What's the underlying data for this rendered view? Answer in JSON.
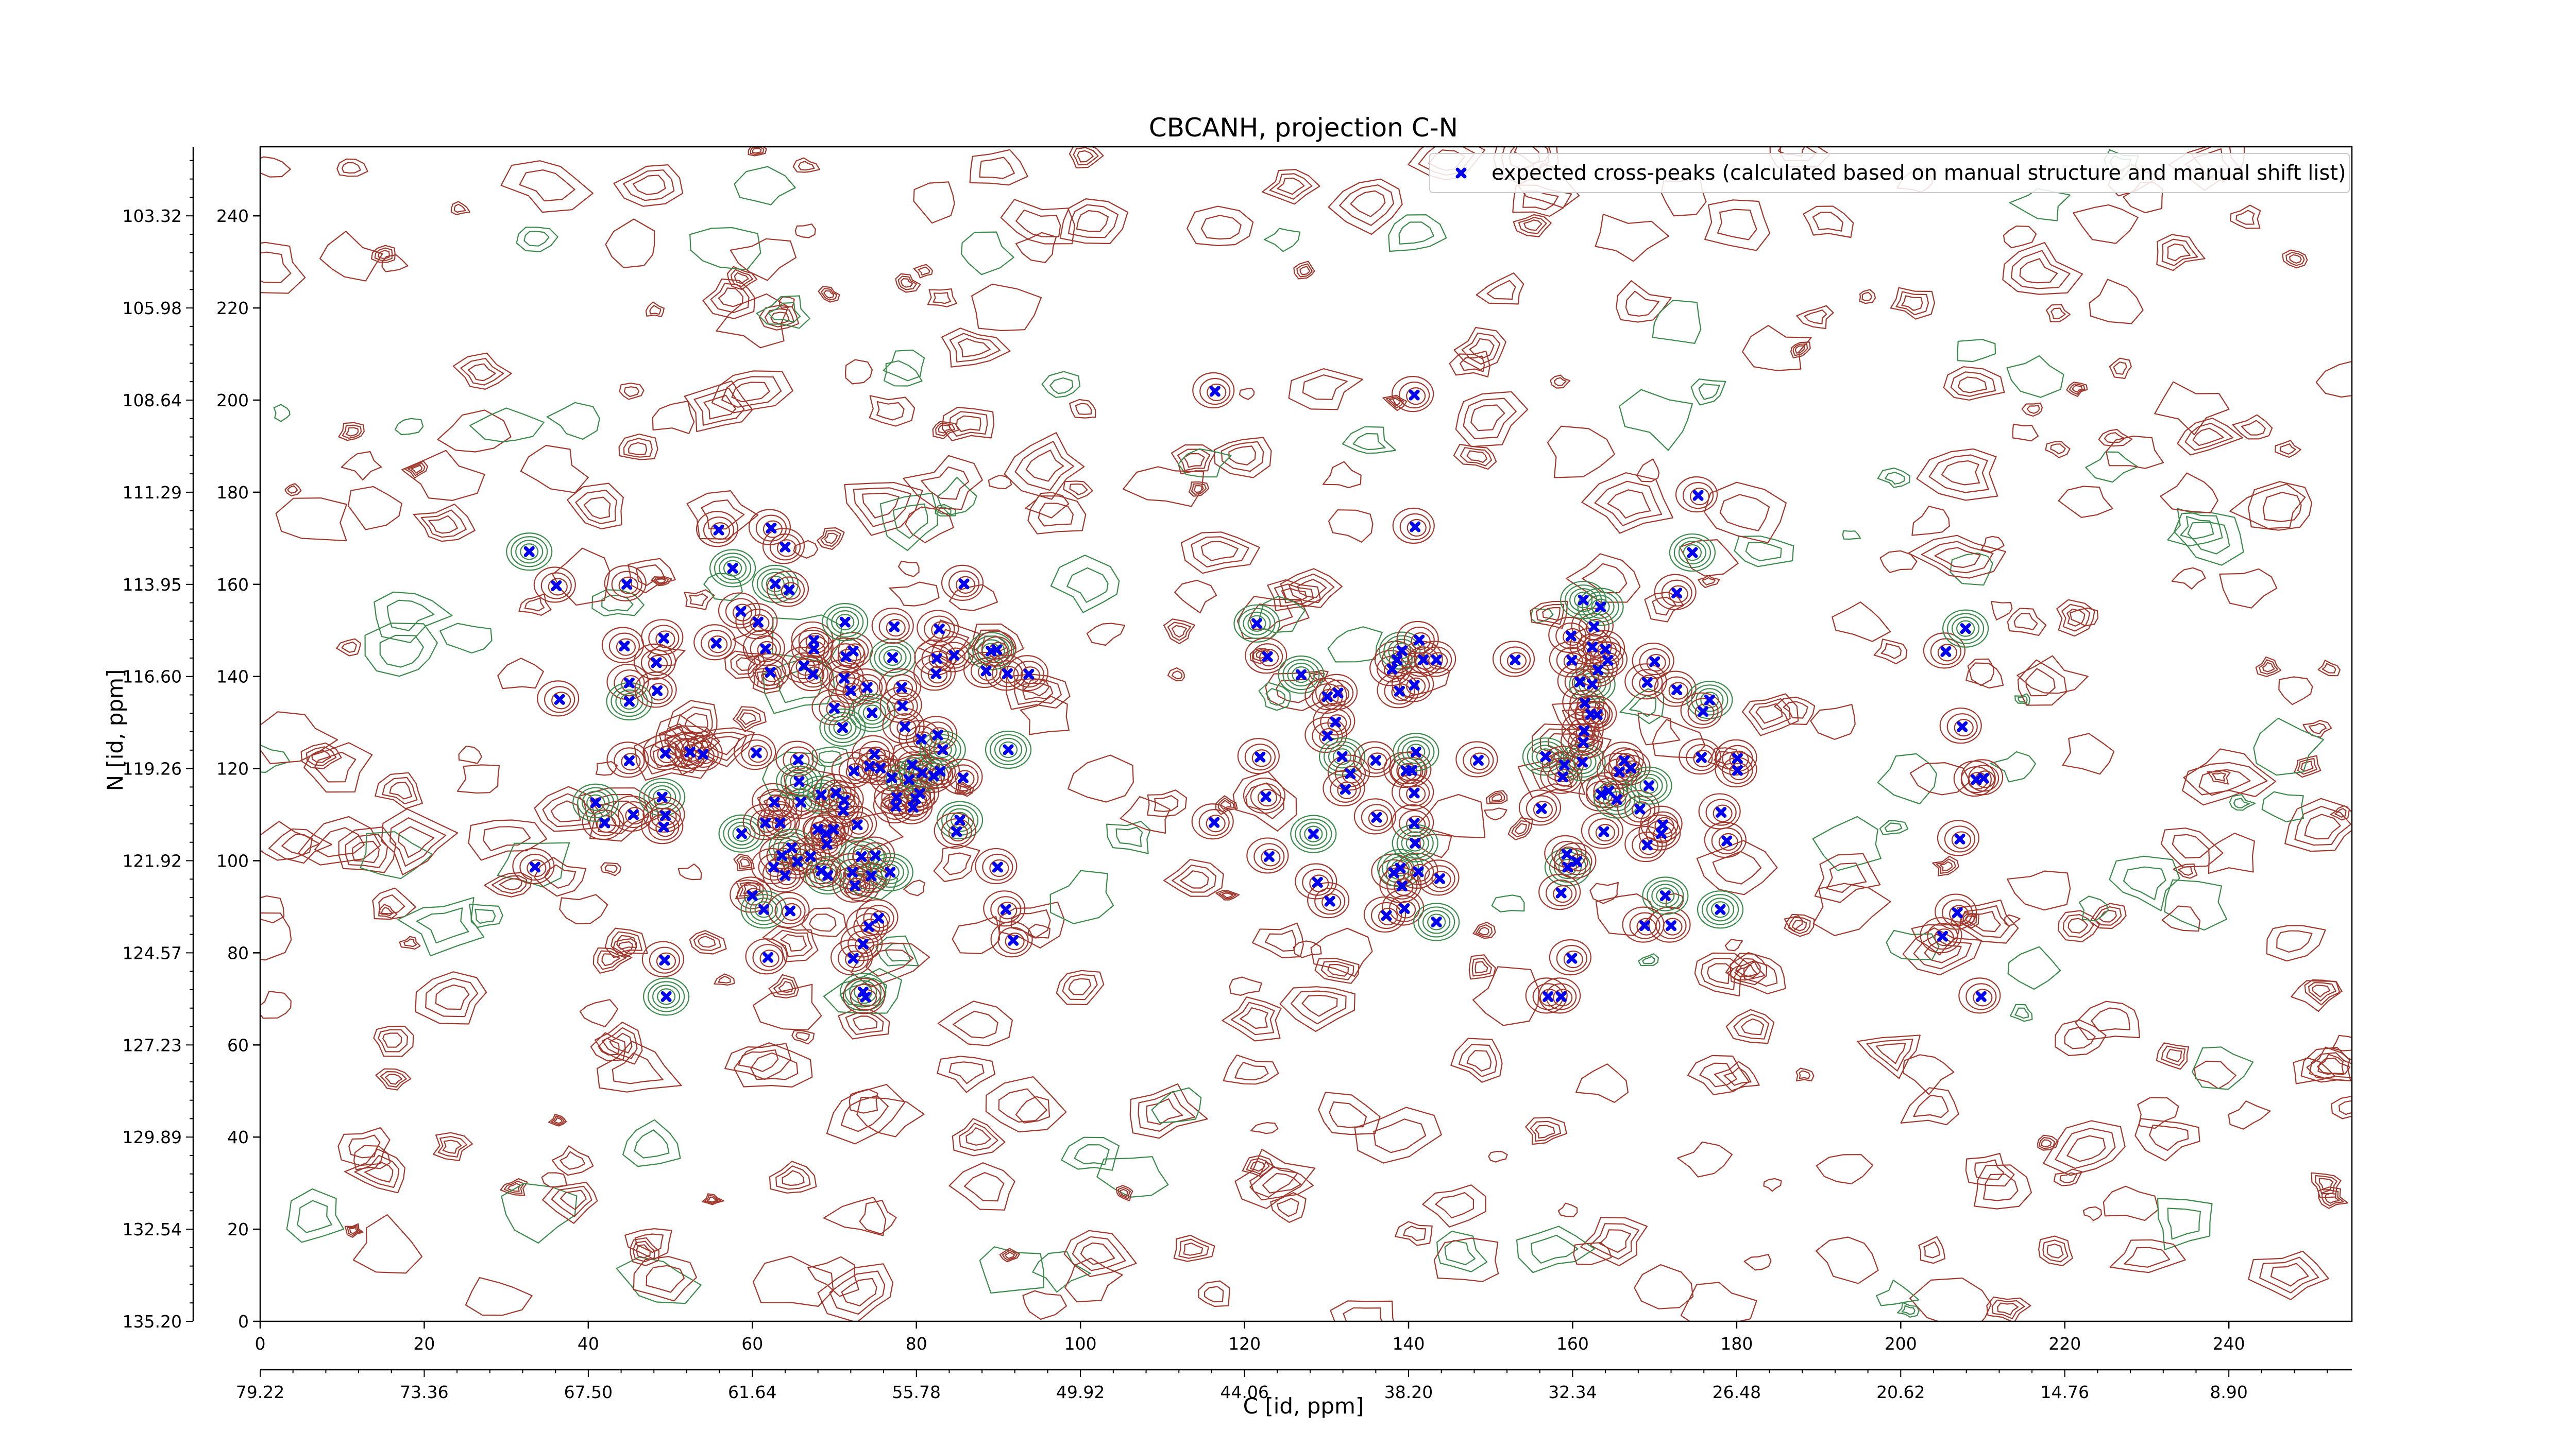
{
  "chart_data": {
    "type": "scatter",
    "title": "CBCANH, projection C-N",
    "xlabel": "C [id, ppm]",
    "ylabel": "N [id, ppm]",
    "xlim": [
      0,
      255
    ],
    "ylim": [
      0,
      255
    ],
    "x_ticks": [
      "0",
      "20",
      "40",
      "60",
      "80",
      "100",
      "120",
      "140",
      "160",
      "180",
      "200",
      "220",
      "240"
    ],
    "x_ppm_ticks": [
      "79.22",
      "73.36",
      "67.50",
      "61.64",
      "55.78",
      "49.92",
      "44.06",
      "38.20",
      "32.34",
      "26.48",
      "20.62",
      "14.76",
      "8.90"
    ],
    "y_ticks": [
      "0",
      "20",
      "40",
      "60",
      "80",
      "100",
      "120",
      "140",
      "160",
      "180",
      "200",
      "220",
      "240"
    ],
    "y_ppm_ticks": [
      "135.20",
      "132.54",
      "129.89",
      "127.23",
      "124.57",
      "121.92",
      "119.26",
      "116.60",
      "113.95",
      "111.29",
      "108.64",
      "105.98",
      "103.32"
    ],
    "legend_position": "upper-right",
    "grid": false,
    "colors": {
      "peaks": "#0000ee",
      "contour_positive": "#a0382d",
      "contour_negative": "#3b8a4c"
    },
    "series": [
      {
        "name": "expected cross-peaks (calculated based on manual structure and manual shift list)",
        "marker": "x",
        "points": [
          [
            32.8,
            167.1
          ],
          [
            36.5,
            135.0
          ],
          [
            36.1,
            159.7
          ],
          [
            44.4,
            146.6
          ],
          [
            45,
            138.6
          ],
          [
            45,
            134.6
          ],
          [
            45,
            121.7
          ],
          [
            44.7,
            160
          ],
          [
            45.5,
            110
          ],
          [
            42,
            108.2
          ],
          [
            40.9,
            112.6
          ],
          [
            33.5,
            98.6
          ],
          [
            48.3,
            143
          ],
          [
            49.2,
            148.3
          ],
          [
            48.4,
            136.9
          ],
          [
            49,
            113.8
          ],
          [
            49.2,
            107.3
          ],
          [
            49.4,
            109.8
          ],
          [
            49.4,
            123.3
          ],
          [
            49.3,
            78.4
          ],
          [
            49.5,
            70.5
          ],
          [
            52.4,
            123.6
          ],
          [
            54,
            123.1
          ],
          [
            55.9,
            171.8
          ],
          [
            55.6,
            147.2
          ],
          [
            57.6,
            163.5
          ],
          [
            58.6,
            154.1
          ],
          [
            60.7,
            151.8
          ],
          [
            62.3,
            172.2
          ],
          [
            64,
            168.1
          ],
          [
            62.8,
            160.1
          ],
          [
            64.5,
            158.8
          ],
          [
            62.2,
            140.9
          ],
          [
            61.6,
            146
          ],
          [
            60.5,
            123.4
          ],
          [
            58.7,
            105.9
          ],
          [
            62.7,
            112.7
          ],
          [
            61.6,
            108.2
          ],
          [
            63.4,
            108.2
          ],
          [
            63.6,
            101.1
          ],
          [
            64.8,
            102.8
          ],
          [
            65.5,
            99.8
          ],
          [
            64,
            96.8
          ],
          [
            62.6,
            98.6
          ],
          [
            60,
            92.4
          ],
          [
            61.4,
            89.4
          ],
          [
            61.9,
            79
          ],
          [
            64.6,
            89.1
          ],
          [
            65.6,
            121.9
          ],
          [
            65.9,
            112.7
          ],
          [
            65.7,
            117.2
          ],
          [
            66.3,
            142.3
          ],
          [
            67.4,
            140.5
          ],
          [
            67.5,
            146
          ],
          [
            67.5,
            147.8
          ],
          [
            68.4,
            114.3
          ],
          [
            69,
            105.9
          ],
          [
            68,
            106.8
          ],
          [
            69.1,
            103.6
          ],
          [
            67.1,
            100.9
          ],
          [
            69.2,
            96.8
          ],
          [
            68.4,
            97.8
          ],
          [
            69.9,
            106.8
          ],
          [
            70.2,
            114.7
          ],
          [
            70,
            133.1
          ],
          [
            71,
            128.9
          ],
          [
            72.3,
            145.5
          ],
          [
            71.4,
            144.3
          ],
          [
            71.2,
            139.6
          ],
          [
            72,
            136.9
          ],
          [
            71.3,
            151.8
          ],
          [
            71.2,
            113.1
          ],
          [
            71.1,
            110.9
          ],
          [
            72.4,
            119.5
          ],
          [
            72.8,
            107.8
          ],
          [
            73.3,
            100.9
          ],
          [
            72.2,
            97.5
          ],
          [
            72.5,
            94.6
          ],
          [
            75,
            101.1
          ],
          [
            74.5,
            96.7
          ],
          [
            76.8,
            97.5
          ],
          [
            75.4,
            87.5
          ],
          [
            74.2,
            85.7
          ],
          [
            73.5,
            81.9
          ],
          [
            72.3,
            78.8
          ],
          [
            73.5,
            71.5
          ],
          [
            73.8,
            70.4
          ],
          [
            74.3,
            120.5
          ],
          [
            74.9,
            123.1
          ],
          [
            74,
            137.6
          ],
          [
            74.6,
            132.1
          ],
          [
            75.6,
            120.1
          ],
          [
            77.5,
            111.8
          ],
          [
            77.6,
            113.7
          ],
          [
            77,
            118
          ],
          [
            77.1,
            144.1
          ],
          [
            77.3,
            150.8
          ],
          [
            78.2,
            137.6
          ],
          [
            78.3,
            133.6
          ],
          [
            78.6,
            129.1
          ],
          [
            79.1,
            117.6
          ],
          [
            79.9,
            113.5
          ],
          [
            80.4,
            114.6
          ],
          [
            79.6,
            111.6
          ],
          [
            79.5,
            120.8
          ],
          [
            80.7,
            119.1
          ],
          [
            80.6,
            126.4
          ],
          [
            82.1,
            118.4
          ],
          [
            82.9,
            119.4
          ],
          [
            82.6,
            127.3
          ],
          [
            83.2,
            124.1
          ],
          [
            82.5,
            143.9
          ],
          [
            82.4,
            140.6
          ],
          [
            82.8,
            150.3
          ],
          [
            84.6,
            144.6
          ],
          [
            85.3,
            108.8
          ],
          [
            84.9,
            106.3
          ],
          [
            85.7,
            118
          ],
          [
            85.8,
            160.1
          ],
          [
            88.5,
            141.2
          ],
          [
            89.1,
            145.5
          ],
          [
            89.8,
            145.8
          ],
          [
            91.1,
            140.6
          ],
          [
            89.9,
            98.6
          ],
          [
            90.9,
            89.4
          ],
          [
            91.2,
            124.1
          ],
          [
            91.8,
            82.7
          ],
          [
            93.7,
            140.5
          ],
          [
            116.4,
            201.9
          ],
          [
            116.3,
            108.3
          ],
          [
            121.5,
            151.5
          ],
          [
            121.9,
            122.5
          ],
          [
            122.6,
            113.9
          ],
          [
            123,
            100.9
          ],
          [
            122.8,
            144.3
          ],
          [
            126.9,
            140.4
          ],
          [
            130.1,
            127.1
          ],
          [
            130.1,
            135.6
          ],
          [
            131.1,
            130.1
          ],
          [
            131.4,
            136.4
          ],
          [
            131.9,
            122.6
          ],
          [
            132.3,
            115.5
          ],
          [
            132.9,
            118.9
          ],
          [
            130.4,
            91.2
          ],
          [
            128.9,
            95.3
          ],
          [
            128.4,
            105.8
          ],
          [
            136.1,
            109.4
          ],
          [
            136,
            121.8
          ],
          [
            137.3,
            88.1
          ],
          [
            138.2,
            97.4
          ],
          [
            139,
            98.4
          ],
          [
            139.5,
            89.6
          ],
          [
            139.2,
            94.5
          ],
          [
            141.2,
            97.6
          ],
          [
            140.7,
            108.1
          ],
          [
            140.8,
            103.8
          ],
          [
            139.7,
            119.5
          ],
          [
            140.4,
            119.6
          ],
          [
            138,
            141.6
          ],
          [
            138.6,
            143.6
          ],
          [
            139.2,
            145.6
          ],
          [
            140.7,
            138.1
          ],
          [
            141.3,
            147.9
          ],
          [
            141.8,
            143.6
          ],
          [
            143.4,
            143.6
          ],
          [
            140.9,
            123.6
          ],
          [
            140.7,
            114.7
          ],
          [
            138.9,
            136.8
          ],
          [
            140.7,
            201.1
          ],
          [
            140.8,
            172.5
          ],
          [
            143.4,
            86.7
          ],
          [
            143.8,
            96.1
          ],
          [
            148.5,
            121.8
          ],
          [
            153,
            143.6
          ],
          [
            156.2,
            111.3
          ],
          [
            156.7,
            122.6
          ],
          [
            158.8,
            118.2
          ],
          [
            159,
            120.8
          ],
          [
            157,
            70.5
          ],
          [
            158.6,
            70.5
          ],
          [
            159.4,
            98.6
          ],
          [
            159.3,
            101.4
          ],
          [
            160.5,
            99.8
          ],
          [
            158.6,
            93
          ],
          [
            159.9,
            78.8
          ],
          [
            161.2,
            121.4
          ],
          [
            161.3,
            125.7
          ],
          [
            161.4,
            128.2
          ],
          [
            162.2,
            131.8
          ],
          [
            161.5,
            134.2
          ],
          [
            162.4,
            138.3
          ],
          [
            163.1,
            141.4
          ],
          [
            163,
            131.7
          ],
          [
            164,
            145.9
          ],
          [
            162.6,
            150.8
          ],
          [
            161.3,
            156.6
          ],
          [
            162.4,
            146.4
          ],
          [
            159.8,
            148.8
          ],
          [
            160.9,
            138.8
          ],
          [
            159.9,
            143.5
          ],
          [
            163.4,
            155.1
          ],
          [
            164.3,
            143.5
          ],
          [
            163.8,
            106.3
          ],
          [
            163.5,
            114.4
          ],
          [
            164.4,
            115.1
          ],
          [
            165.4,
            113.3
          ],
          [
            165.7,
            119.3
          ],
          [
            166.3,
            121.7
          ],
          [
            167.1,
            120.1
          ],
          [
            168.2,
            111.2
          ],
          [
            169.3,
            116.3
          ],
          [
            169.1,
            103.4
          ],
          [
            171,
            107.8
          ],
          [
            170.8,
            105.9
          ],
          [
            172,
            85.9
          ],
          [
            171.3,
            92.4
          ],
          [
            168.8,
            85.9
          ],
          [
            169.1,
            138.7
          ],
          [
            170,
            143.2
          ],
          [
            172.7,
            137.1
          ],
          [
            174.6,
            166.9
          ],
          [
            172.7,
            158.1
          ],
          [
            175.7,
            122.4
          ],
          [
            178.1,
            110.5
          ],
          [
            178.8,
            104.3
          ],
          [
            176.7,
            134.9
          ],
          [
            180.1,
            119.6
          ],
          [
            180.1,
            122.2
          ],
          [
            175.3,
            179.3
          ],
          [
            175.9,
            132.4
          ],
          [
            178,
            89.4
          ],
          [
            205.1,
            83.6
          ],
          [
            205.5,
            145.4
          ],
          [
            207.2,
            104.7
          ],
          [
            207.5,
            129.1
          ],
          [
            207.9,
            150.4
          ],
          [
            209.2,
            117.6
          ],
          [
            210.1,
            117.9
          ],
          [
            209.8,
            70.5
          ],
          [
            206.9,
            88.7
          ]
        ]
      }
    ]
  }
}
